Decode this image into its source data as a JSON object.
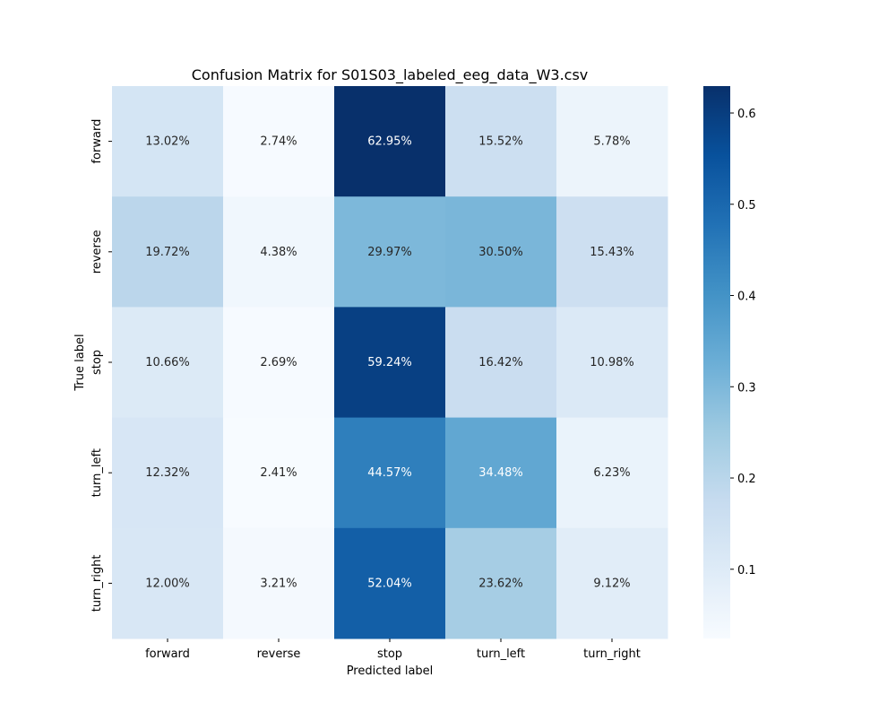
{
  "chart_data": {
    "type": "heatmap",
    "title": "Confusion Matrix for S01S03_labeled_eeg_data_W3.csv",
    "xlabel": "Predicted label",
    "ylabel": "True label",
    "x_categories": [
      "forward",
      "reverse",
      "stop",
      "turn_left",
      "turn_right"
    ],
    "y_categories": [
      "forward",
      "reverse",
      "stop",
      "turn_left",
      "turn_right"
    ],
    "values": [
      [
        0.1302,
        0.0274,
        0.6295,
        0.1552,
        0.0578
      ],
      [
        0.1972,
        0.0438,
        0.2997,
        0.305,
        0.1543
      ],
      [
        0.1066,
        0.0269,
        0.5924,
        0.1642,
        0.1098
      ],
      [
        0.1232,
        0.0241,
        0.4457,
        0.3448,
        0.0623
      ],
      [
        0.12,
        0.0321,
        0.5204,
        0.2362,
        0.0912
      ]
    ],
    "annotations": [
      [
        "13.02%",
        "2.74%",
        "62.95%",
        "15.52%",
        "5.78%"
      ],
      [
        "19.72%",
        "4.38%",
        "29.97%",
        "30.50%",
        "15.43%"
      ],
      [
        "10.66%",
        "2.69%",
        "59.24%",
        "16.42%",
        "10.98%"
      ],
      [
        "12.32%",
        "2.41%",
        "44.57%",
        "34.48%",
        "6.23%"
      ],
      [
        "12.00%",
        "3.21%",
        "52.04%",
        "23.62%",
        "9.12%"
      ]
    ],
    "colormap": "Blues",
    "colorbar": {
      "range": [
        0.0241,
        0.6295
      ],
      "ticks": [
        0.1,
        0.2,
        0.3,
        0.4,
        0.5,
        0.6
      ],
      "tick_labels": [
        "0.1",
        "0.2",
        "0.3",
        "0.4",
        "0.5",
        "0.6"
      ]
    },
    "legend": "colorbar-right",
    "grid": false
  }
}
